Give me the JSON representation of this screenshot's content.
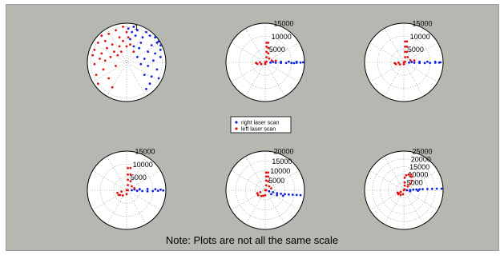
{
  "note": "Note: Plots are not all the same scale",
  "colors": {
    "background": "#b4b8b0",
    "right_series": "#1020e0",
    "left_series": "#e01010",
    "grid": "#888888"
  },
  "legend": {
    "placement": "center",
    "entries": [
      "right laser scan",
      "left laser scan"
    ]
  },
  "chart_data": [
    {
      "type": "scatter",
      "projection": "polar",
      "rticks": [
        {
          "label": "1",
          "value": 1
        }
      ],
      "rmax": 1.1,
      "series": [
        {
          "name": "right laser scan",
          "color": "#1020e0",
          "points": [
            [
              0.95,
              0.62
            ],
            [
              0.85,
              0.55
            ],
            [
              0.7,
              0.48
            ],
            [
              0.6,
              0.3
            ],
            [
              0.8,
              0.25
            ],
            [
              0.95,
              0.15
            ],
            [
              0.75,
              0.05
            ],
            [
              0.6,
              -0.1
            ],
            [
              0.85,
              -0.2
            ],
            [
              0.5,
              -0.35
            ],
            [
              0.7,
              -0.4
            ],
            [
              0.9,
              -0.45
            ],
            [
              0.45,
              0.7
            ],
            [
              0.3,
              0.9
            ],
            [
              0.2,
              1.0
            ],
            [
              0.05,
              0.95
            ],
            [
              0.55,
              0.85
            ],
            [
              0.65,
              0.75
            ],
            [
              0.4,
              0.55
            ],
            [
              0.35,
              0.4
            ],
            [
              0.5,
              0.1
            ],
            [
              0.4,
              -0.05
            ],
            [
              0.3,
              0.15
            ],
            [
              0.65,
              -0.6
            ],
            [
              0.55,
              -0.75
            ],
            [
              0.95,
              0.35
            ],
            [
              1.0,
              0.5
            ],
            [
              0.25,
              0.75
            ],
            [
              0.15,
              0.85
            ],
            [
              0.1,
              0.65
            ],
            [
              0.2,
              0.45
            ],
            [
              0.8,
              0.7
            ]
          ]
        },
        {
          "name": "left laser scan",
          "color": "#e01010",
          "points": [
            [
              -0.8,
              0.55
            ],
            [
              -0.9,
              0.35
            ],
            [
              -0.7,
              0.25
            ],
            [
              -0.6,
              0.6
            ],
            [
              -0.5,
              0.8
            ],
            [
              -0.3,
              0.9
            ],
            [
              -0.1,
              1.0
            ],
            [
              0.0,
              0.85
            ],
            [
              -0.2,
              0.7
            ],
            [
              -0.4,
              0.5
            ],
            [
              -0.55,
              0.4
            ],
            [
              -0.75,
              0.1
            ],
            [
              -0.9,
              -0.05
            ],
            [
              -0.65,
              -0.2
            ],
            [
              -0.5,
              -0.45
            ],
            [
              -0.85,
              -0.35
            ],
            [
              -0.35,
              0.3
            ],
            [
              -0.2,
              0.45
            ],
            [
              -0.1,
              0.6
            ],
            [
              0.05,
              0.7
            ],
            [
              -0.95,
              0.2
            ],
            [
              -0.6,
              0.05
            ],
            [
              -0.45,
              0.15
            ],
            [
              -0.25,
              0.2
            ],
            [
              -0.7,
              0.75
            ],
            [
              -0.15,
              0.3
            ],
            [
              0.1,
              0.5
            ],
            [
              -0.3,
              -0.1
            ],
            [
              -0.8,
              -0.6
            ],
            [
              -0.4,
              -0.7
            ],
            [
              0.2,
              0.3
            ],
            [
              0.0,
              0.45
            ]
          ]
        }
      ]
    },
    {
      "type": "scatter",
      "projection": "polar",
      "rticks": [
        {
          "label": "5000",
          "value": 5000
        },
        {
          "label": "10000",
          "value": 10000
        },
        {
          "label": "15000",
          "value": 15000
        }
      ],
      "rmax": 15000,
      "series": [
        {
          "name": "right laser scan",
          "color": "#1020e0",
          "points": [
            [
              2000,
              -100
            ],
            [
              4000,
              -150
            ],
            [
              6000,
              -200
            ],
            [
              8000,
              -250
            ],
            [
              10000,
              -200
            ],
            [
              12000,
              -150
            ],
            [
              13500,
              -100
            ],
            [
              12000,
              200
            ],
            [
              9000,
              250
            ],
            [
              6000,
              200
            ],
            [
              3000,
              150
            ],
            [
              14500,
              0
            ],
            [
              11000,
              -300
            ]
          ]
        },
        {
          "name": "left laser scan",
          "color": "#e01010",
          "points": [
            [
              0,
              0
            ],
            [
              -2000,
              0
            ],
            [
              -3500,
              -200
            ],
            [
              -3000,
              -600
            ],
            [
              -1500,
              -700
            ],
            [
              0,
              -600
            ],
            [
              500,
              200
            ],
            [
              500,
              2000
            ],
            [
              500,
              4000
            ],
            [
              500,
              6000
            ],
            [
              500,
              7500
            ],
            [
              1200,
              7500
            ],
            [
              1200,
              5500
            ],
            [
              1200,
              3500
            ],
            [
              1500,
              1500
            ],
            [
              2500,
              700
            ],
            [
              4000,
              600
            ]
          ]
        }
      ]
    },
    {
      "type": "scatter",
      "projection": "polar",
      "rticks": [
        {
          "label": "5000",
          "value": 5000
        },
        {
          "label": "10000",
          "value": 10000
        },
        {
          "label": "15000",
          "value": 15000
        }
      ],
      "rmax": 15000,
      "series": [
        {
          "name": "right laser scan",
          "color": "#1020e0",
          "points": [
            [
              2000,
              -100
            ],
            [
              4000,
              -150
            ],
            [
              6000,
              -200
            ],
            [
              8000,
              -250
            ],
            [
              10000,
              -200
            ],
            [
              12000,
              -150
            ],
            [
              13500,
              -100
            ],
            [
              12000,
              200
            ],
            [
              9000,
              250
            ],
            [
              6000,
              200
            ],
            [
              3000,
              150
            ],
            [
              14000,
              0
            ]
          ]
        },
        {
          "name": "left laser scan",
          "color": "#e01010",
          "points": [
            [
              0,
              0
            ],
            [
              -2000,
              -100
            ],
            [
              -3500,
              -300
            ],
            [
              -3000,
              -700
            ],
            [
              -1500,
              -800
            ],
            [
              0,
              -700
            ],
            [
              500,
              200
            ],
            [
              500,
              2000
            ],
            [
              500,
              4000
            ],
            [
              500,
              6000
            ],
            [
              500,
              8000
            ],
            [
              1200,
              8000
            ],
            [
              1200,
              6000
            ],
            [
              1200,
              4000
            ],
            [
              1500,
              2000
            ],
            [
              2500,
              800
            ],
            [
              4000,
              700
            ]
          ]
        }
      ]
    },
    {
      "type": "scatter",
      "projection": "polar",
      "rticks": [
        {
          "label": "5000",
          "value": 5000
        },
        {
          "label": "10000",
          "value": 10000
        },
        {
          "label": "15000",
          "value": 15000
        }
      ],
      "rmax": 15000,
      "series": [
        {
          "name": "right laser scan",
          "color": "#1020e0",
          "points": [
            [
              2000,
              0
            ],
            [
              4000,
              -200
            ],
            [
              6000,
              -300
            ],
            [
              8000,
              -400
            ],
            [
              10000,
              -300
            ],
            [
              12000,
              -200
            ],
            [
              14000,
              -100
            ],
            [
              11000,
              400
            ],
            [
              8000,
              500
            ],
            [
              5000,
              400
            ],
            [
              3000,
              300
            ],
            [
              13000,
              200
            ]
          ]
        },
        {
          "name": "left laser scan",
          "color": "#e01010",
          "points": [
            [
              0,
              0
            ],
            [
              -2000,
              -500
            ],
            [
              -3500,
              -1000
            ],
            [
              -3000,
              -1800
            ],
            [
              -1500,
              -2000
            ],
            [
              0,
              -1500
            ],
            [
              500,
              0
            ],
            [
              500,
              2000
            ],
            [
              500,
              4000
            ],
            [
              500,
              6000
            ],
            [
              500,
              8500
            ],
            [
              1500,
              8500
            ],
            [
              1500,
              6000
            ],
            [
              1500,
              3500
            ],
            [
              2000,
              1500
            ],
            [
              3000,
              800
            ],
            [
              -2500,
              -1800
            ]
          ]
        }
      ]
    },
    {
      "type": "scatter",
      "projection": "polar",
      "rticks": [
        {
          "label": "5000",
          "value": 5000
        },
        {
          "label": "10000",
          "value": 10000
        },
        {
          "label": "15000",
          "value": 15000
        },
        {
          "label": "20000",
          "value": 20000
        }
      ],
      "rmax": 20000,
      "series": [
        {
          "name": "right laser scan",
          "color": "#1020e0",
          "points": [
            [
              2000,
              -500
            ],
            [
              4000,
              -1000
            ],
            [
              6000,
              -1500
            ],
            [
              8000,
              -1800
            ],
            [
              10000,
              -2000
            ],
            [
              12000,
              -2200
            ],
            [
              14000,
              -2300
            ],
            [
              16000,
              -2400
            ],
            [
              18000,
              -2500
            ],
            [
              6000,
              -2500
            ],
            [
              9000,
              -2800
            ],
            [
              3000,
              -2000
            ]
          ]
        },
        {
          "name": "left laser scan",
          "color": "#e01010",
          "points": [
            [
              0,
              0
            ],
            [
              -2500,
              -1000
            ],
            [
              -4000,
              -1500
            ],
            [
              -3500,
              -2500
            ],
            [
              -2000,
              -3000
            ],
            [
              0,
              -2500
            ],
            [
              500,
              0
            ],
            [
              500,
              2500
            ],
            [
              500,
              5000
            ],
            [
              500,
              7000
            ],
            [
              500,
              9000
            ],
            [
              1500,
              9000
            ],
            [
              1500,
              7000
            ],
            [
              1500,
              4500
            ],
            [
              2000,
              2000
            ],
            [
              3000,
              1000
            ],
            [
              -1000,
              -2800
            ]
          ]
        }
      ]
    },
    {
      "type": "scatter",
      "projection": "polar",
      "rticks": [
        {
          "label": "5000",
          "value": 5000
        },
        {
          "label": "10000",
          "value": 10000
        },
        {
          "label": "15000",
          "value": 15000
        },
        {
          "label": "20000",
          "value": 20000
        },
        {
          "label": "25000",
          "value": 25000
        }
      ],
      "rmax": 25000,
      "series": [
        {
          "name": "right laser scan",
          "color": "#1020e0",
          "points": [
            [
              2000,
              0
            ],
            [
              4000,
              200
            ],
            [
              6000,
              400
            ],
            [
              8000,
              500
            ],
            [
              10000,
              600
            ],
            [
              12000,
              700
            ],
            [
              15000,
              800
            ],
            [
              18000,
              900
            ],
            [
              21000,
              1000
            ],
            [
              24000,
              1000
            ],
            [
              4000,
              -600
            ],
            [
              9000,
              -300
            ]
          ]
        },
        {
          "name": "left laser scan",
          "color": "#e01010",
          "points": [
            [
              0,
              0
            ],
            [
              -2000,
              -1000
            ],
            [
              -3000,
              -2000
            ],
            [
              -2000,
              -3000
            ],
            [
              -500,
              -2500
            ],
            [
              500,
              500
            ],
            [
              500,
              3000
            ],
            [
              500,
              5000
            ],
            [
              500,
              8000
            ],
            [
              1500,
              9500
            ],
            [
              3000,
              10000
            ],
            [
              4500,
              10000
            ],
            [
              5000,
              8500
            ],
            [
              5000,
              6000
            ],
            [
              4000,
              4000
            ],
            [
              2500,
              2500
            ],
            [
              -3500,
              -2500
            ],
            [
              -4000,
              -1500
            ]
          ]
        }
      ]
    }
  ]
}
